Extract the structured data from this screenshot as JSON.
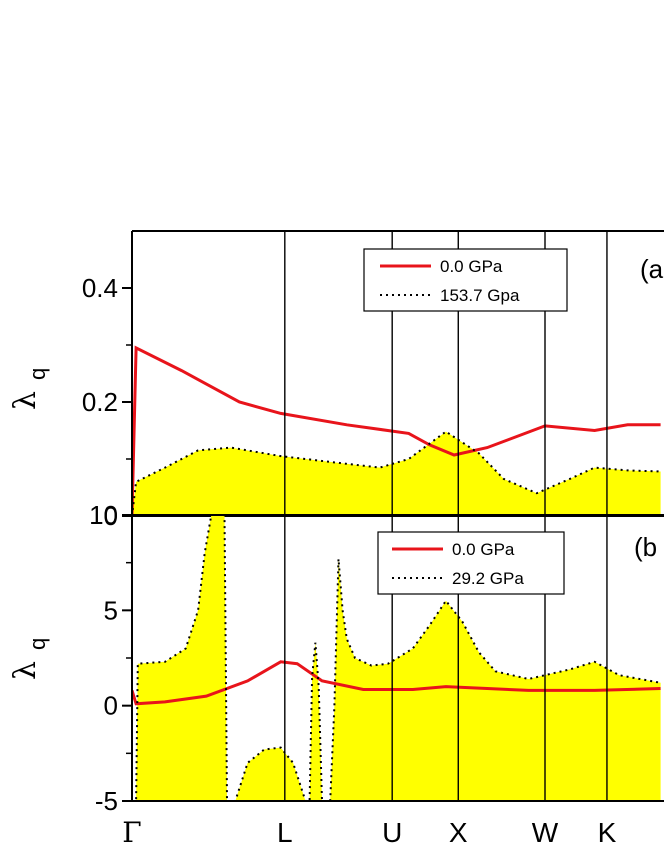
{
  "chart_data": [
    {
      "type": "area",
      "panel_label": "(a",
      "ylabel": "λ",
      "ylabel_sub": "q",
      "ylim": [
        0,
        0.5
      ],
      "yticks": [
        0,
        0.2,
        0.4
      ],
      "ytick_labels": [
        "0",
        "0.2",
        "0.4"
      ],
      "x_labels": [
        "Γ",
        "L",
        "U",
        "X",
        "W",
        "K"
      ],
      "legend": [
        {
          "label": "0.0 GPa",
          "style": "solid",
          "color": "#e8141b"
        },
        {
          "label": "153.7 Gpa",
          "style": "dotted",
          "color": "#000000"
        }
      ],
      "series": [
        {
          "name": "0.0 GPa",
          "style": "solid",
          "color": "#e8141b",
          "x": [
            0.0,
            0.05,
            0.6,
            1.3,
            1.8,
            2.6,
            3.35,
            3.6,
            3.9,
            4.3,
            5.0,
            5.6,
            6.0,
            6.4
          ],
          "y": [
            0.0,
            0.295,
            0.255,
            0.2,
            0.18,
            0.16,
            0.145,
            0.125,
            0.107,
            0.12,
            0.158,
            0.15,
            0.16,
            0.16
          ]
        },
        {
          "name": "153.7 Gpa",
          "style": "dotted",
          "color": "#000000",
          "fill": "#ffff00",
          "x": [
            0.0,
            0.05,
            0.4,
            0.8,
            1.2,
            1.8,
            2.4,
            3.0,
            3.35,
            3.8,
            4.2,
            4.5,
            4.9,
            5.3,
            5.6,
            6.0,
            6.4
          ],
          "y": [
            0.0,
            0.06,
            0.085,
            0.115,
            0.12,
            0.105,
            0.095,
            0.085,
            0.1,
            0.148,
            0.11,
            0.065,
            0.04,
            0.065,
            0.085,
            0.08,
            0.078
          ]
        }
      ]
    },
    {
      "type": "area",
      "panel_label": "(b",
      "ylabel": "λ",
      "ylabel_sub": "q",
      "ylim": [
        -5,
        10
      ],
      "yticks": [
        -5,
        0,
        5,
        10
      ],
      "ytick_labels": [
        "-5",
        "0",
        "5",
        "10"
      ],
      "x_labels": [
        "Γ",
        "L",
        "U",
        "X",
        "W",
        "K"
      ],
      "legend": [
        {
          "label": "0.0 GPa",
          "style": "solid",
          "color": "#e8141b"
        },
        {
          "label": "29.2 GPa",
          "style": "dotted",
          "color": "#000000"
        }
      ],
      "series": [
        {
          "name": "0.0 GPa",
          "style": "solid",
          "color": "#e8141b",
          "x": [
            0.0,
            0.05,
            0.4,
            0.9,
            1.4,
            1.8,
            2.0,
            2.3,
            2.8,
            3.4,
            3.8,
            4.3,
            4.8,
            5.6,
            6.4
          ],
          "y": [
            0.8,
            0.1,
            0.2,
            0.5,
            1.3,
            2.3,
            2.2,
            1.3,
            0.85,
            0.85,
            1.0,
            0.9,
            0.8,
            0.8,
            0.9
          ]
        },
        {
          "name": "29.2 GPa",
          "style": "dotted",
          "color": "#000000",
          "fill": "#ffff00",
          "x": [
            0.0,
            0.05,
            0.07,
            0.4,
            0.65,
            0.8,
            0.88,
            0.96,
            1.0,
            1.02,
            1.12,
            1.15,
            1.25,
            1.4,
            1.6,
            1.8,
            1.95,
            2.1,
            2.15,
            2.18,
            2.22,
            2.26,
            2.3,
            2.4,
            2.45,
            2.5,
            2.55,
            2.6,
            2.7,
            2.9,
            3.1,
            3.4,
            3.6,
            3.8,
            4.0,
            4.2,
            4.4,
            4.8,
            5.3,
            5.6,
            5.9,
            6.4
          ],
          "y": [
            -5.0,
            -5.0,
            2.2,
            2.3,
            3.0,
            5.0,
            8.0,
            10.0,
            10.0,
            10.0,
            10.0,
            -5.0,
            -5.0,
            -3.0,
            -2.3,
            -2.2,
            -3.0,
            -5.0,
            -5.0,
            1.5,
            3.3,
            1.0,
            -5.0,
            -5.0,
            0.0,
            7.7,
            5.0,
            3.5,
            2.5,
            2.1,
            2.2,
            3.0,
            4.2,
            5.5,
            4.4,
            2.8,
            1.8,
            1.4,
            1.9,
            2.3,
            1.6,
            1.2
          ]
        }
      ]
    }
  ]
}
